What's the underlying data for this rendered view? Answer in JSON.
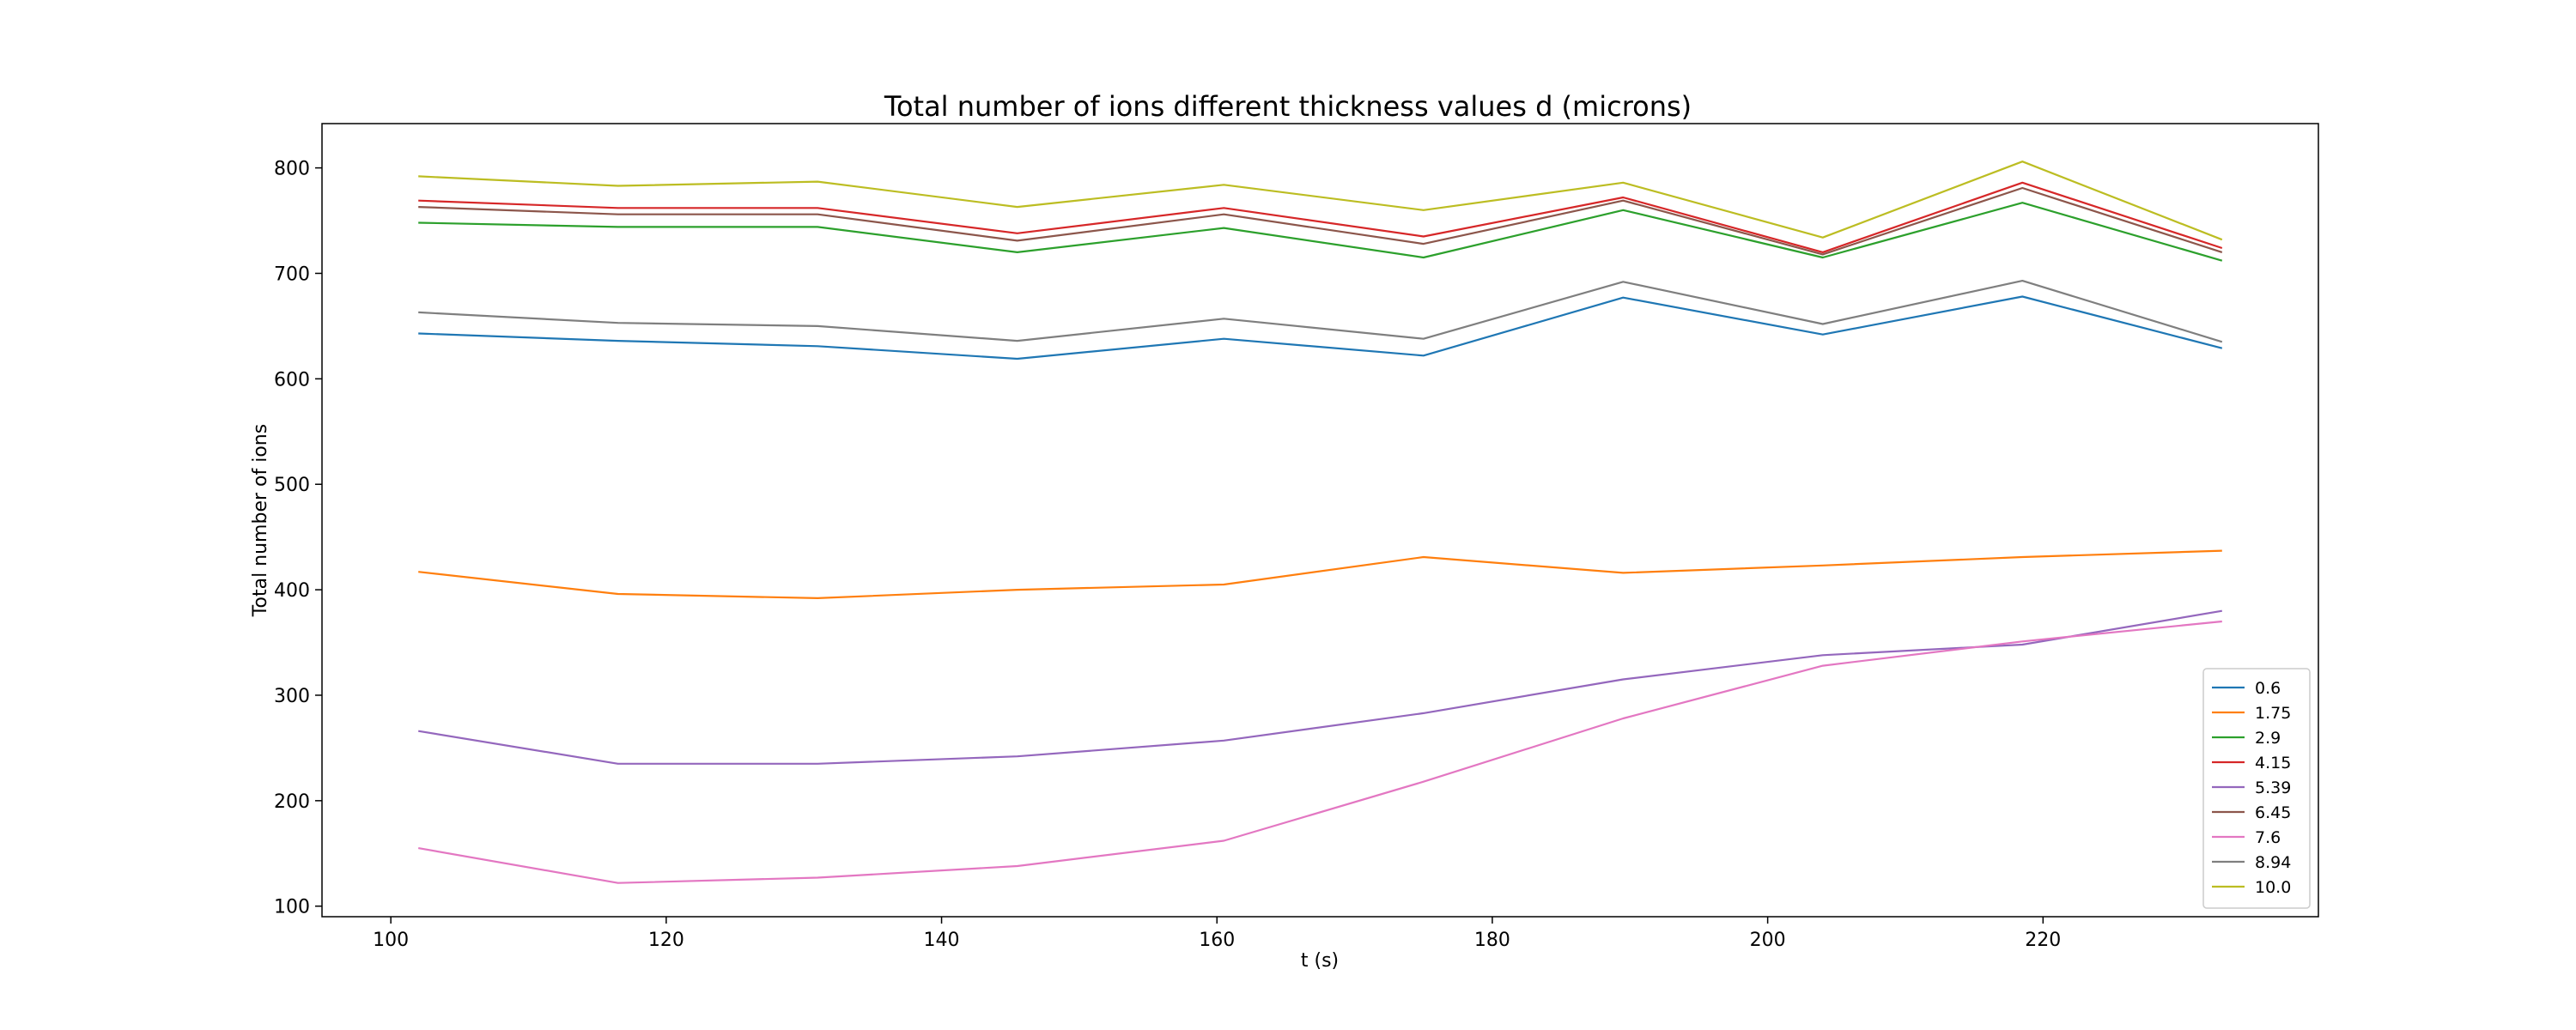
{
  "chart_data": {
    "type": "line",
    "title": "Total number of ions different thickness values d (microns)",
    "xlabel": "t (s)",
    "ylabel": "Total number of ions",
    "xlim": [
      95,
      240
    ],
    "ylim": [
      90,
      842
    ],
    "x_ticks": [
      100,
      120,
      140,
      160,
      180,
      200,
      220
    ],
    "y_ticks": [
      100,
      200,
      300,
      400,
      500,
      600,
      700,
      800
    ],
    "grid": false,
    "legend_position": "lower-right",
    "x": [
      102,
      116.5,
      131,
      145.5,
      160.5,
      175,
      189.5,
      204,
      218.5,
      233
    ],
    "series": [
      {
        "name": "0.6",
        "color": "#1f77b4",
        "values": [
          643,
          636,
          631,
          619,
          638,
          622,
          677,
          642,
          678,
          629
        ]
      },
      {
        "name": "1.75",
        "color": "#ff7f0e",
        "values": [
          417,
          396,
          392,
          400,
          405,
          431,
          416,
          423,
          431,
          437
        ]
      },
      {
        "name": "2.9",
        "color": "#2ca02c",
        "values": [
          748,
          744,
          744,
          720,
          743,
          715,
          760,
          715,
          767,
          712
        ]
      },
      {
        "name": "4.15",
        "color": "#d62728",
        "values": [
          769,
          762,
          762,
          738,
          762,
          735,
          772,
          720,
          786,
          724
        ]
      },
      {
        "name": "5.39",
        "color": "#9467bd",
        "values": [
          266,
          235,
          235,
          242,
          257,
          283,
          315,
          338,
          348,
          380
        ]
      },
      {
        "name": "6.45",
        "color": "#8c564b",
        "values": [
          763,
          756,
          756,
          731,
          756,
          728,
          769,
          718,
          781,
          720
        ]
      },
      {
        "name": "7.6",
        "color": "#e377c2",
        "values": [
          155,
          122,
          127,
          138,
          162,
          218,
          278,
          328,
          351,
          370
        ]
      },
      {
        "name": "8.94",
        "color": "#7f7f7f",
        "values": [
          663,
          653,
          650,
          636,
          657,
          638,
          692,
          652,
          693,
          635
        ]
      },
      {
        "name": "10.0",
        "color": "#bcbd22",
        "values": [
          792,
          783,
          787,
          763,
          784,
          760,
          786,
          734,
          806,
          732
        ]
      }
    ]
  }
}
